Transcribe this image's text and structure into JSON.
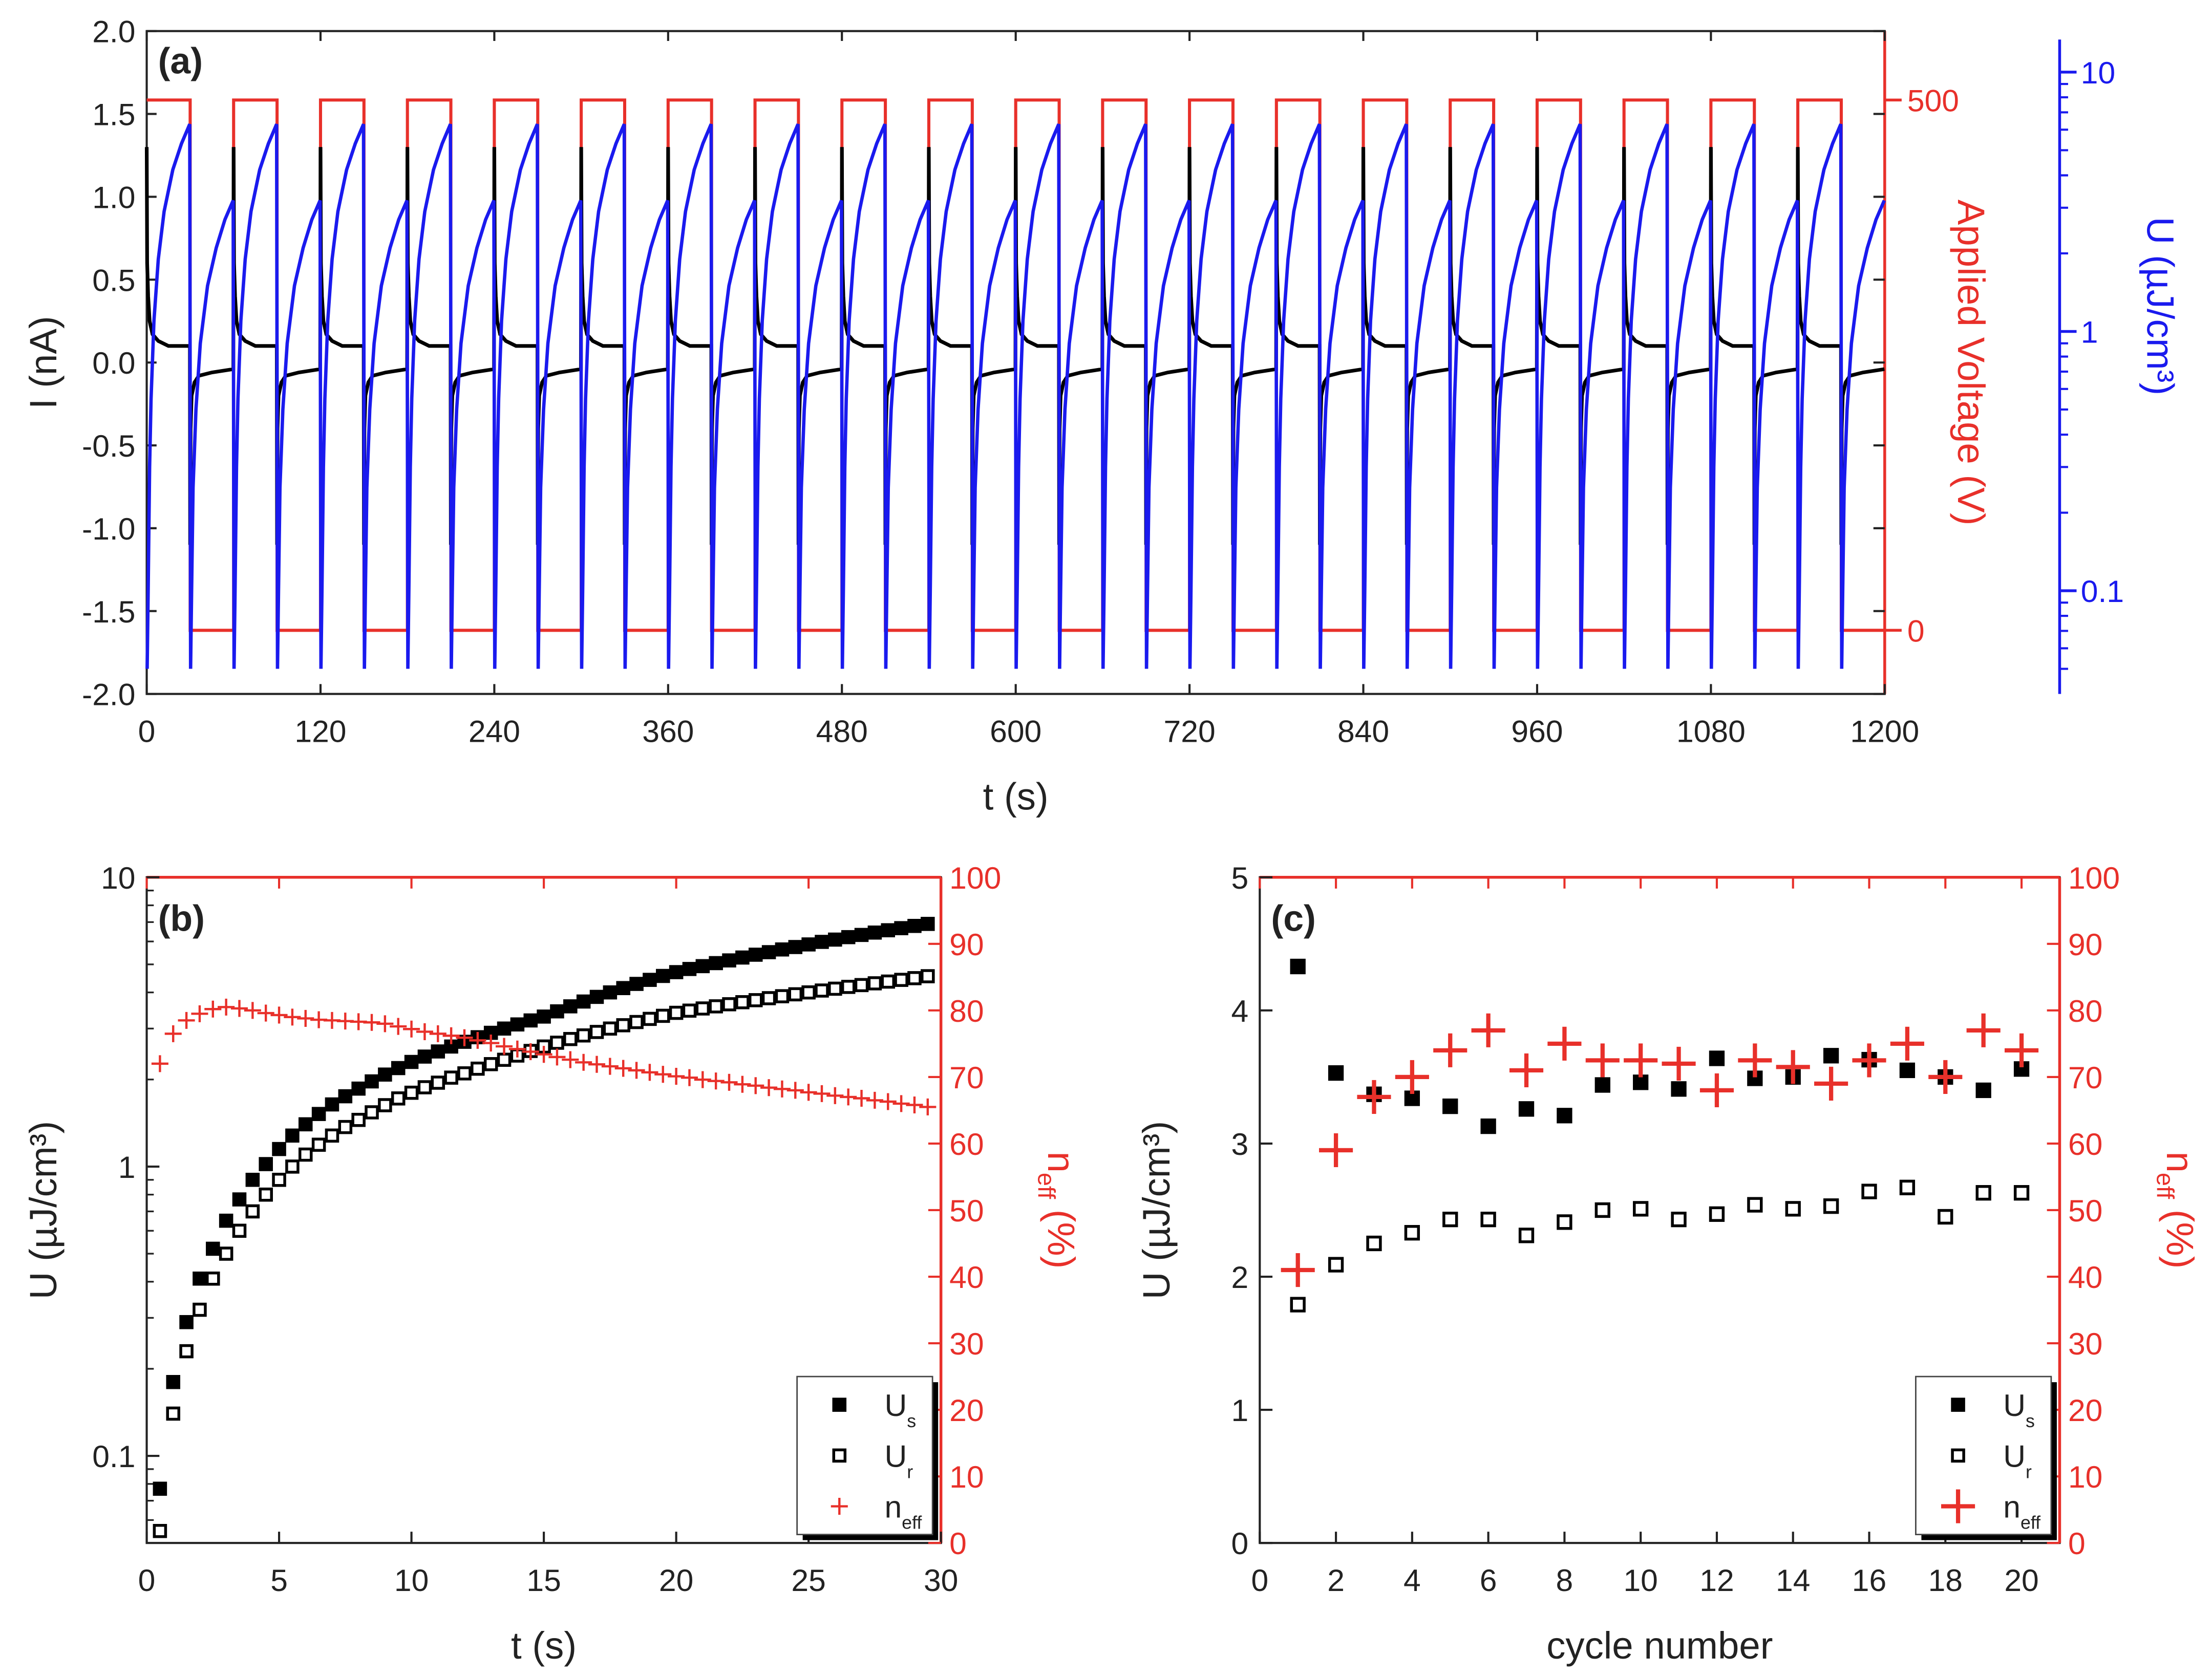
{
  "colors": {
    "current": "#000000",
    "voltage": "#e8302a",
    "energy": "#1a1aee",
    "neff": "#e8302a"
  },
  "chart_data": [
    {
      "panel": "(a)",
      "type": "line",
      "xlabel": "t (s)",
      "ylabel": "I (nA)",
      "y2label": "Applied Voltage (V)",
      "y3label": "U (µJ/cm³)",
      "xlim": [
        0,
        1200
      ],
      "ylim": [
        -2.0,
        2.0
      ],
      "y2lim": [
        -60,
        565
      ],
      "y3lim": [
        0.04,
        14.4
      ],
      "y3scale": "log",
      "xticks": [
        "0",
        "120",
        "240",
        "360",
        "480",
        "600",
        "720",
        "840",
        "960",
        "1080",
        "1200"
      ],
      "yticks": [
        "-2.0",
        "-1.5",
        "-1.0",
        "-0.5",
        "0.0",
        "0.5",
        "1.0",
        "1.5",
        "2.0"
      ],
      "y2ticks": [
        "0",
        "500"
      ],
      "y3ticks": [
        "0.1",
        "1",
        "10"
      ],
      "voltage": {
        "high": 500,
        "low": 0,
        "period_s": 60,
        "high_duration_s": 30,
        "cycles": 20
      },
      "current_one_period": {
        "t": [
          0,
          0.3,
          1,
          2,
          4,
          8,
          15,
          29.8,
          30,
          30.3,
          31,
          33,
          36,
          45,
          59.8
        ],
        "I": [
          1.3,
          0.6,
          0.4,
          0.25,
          0.17,
          0.13,
          0.1,
          0.1,
          -1.1,
          -0.4,
          -0.2,
          -0.12,
          -0.08,
          -0.06,
          -0.04
        ]
      },
      "energy_one_period": {
        "t": [
          0.3,
          1,
          2,
          3,
          5,
          8,
          12,
          18,
          24,
          29.7,
          30.3,
          31,
          32,
          34,
          37,
          42,
          48,
          54,
          59.7
        ],
        "U": [
          0.05,
          0.1,
          0.3,
          0.55,
          1.1,
          1.9,
          2.9,
          4.2,
          5.3,
          6.3,
          0.05,
          0.1,
          0.25,
          0.5,
          0.9,
          1.5,
          2.1,
          2.7,
          3.2
        ]
      }
    },
    {
      "panel": "(b)",
      "type": "scatter",
      "xlabel": "t (s)",
      "ylabel": "U (µJ/cm³)",
      "y2label": "n",
      "y2label_sub": "eff",
      "y2label_unit": " (%)",
      "xlim": [
        0,
        30
      ],
      "ylim": [
        0.05,
        10
      ],
      "yscale": "log",
      "y2lim": [
        0,
        100
      ],
      "xticks": [
        "0",
        "5",
        "10",
        "15",
        "20",
        "25",
        "30"
      ],
      "yticks": [
        "0.1",
        "1",
        "10"
      ],
      "y2ticks": [
        "0",
        "10",
        "20",
        "30",
        "40",
        "50",
        "60",
        "70",
        "80",
        "90",
        "100"
      ],
      "legend": {
        "position": "bottom-right",
        "entries": [
          {
            "main": "U",
            "sub": "s"
          },
          {
            "main": "U",
            "sub": "r"
          },
          {
            "main": "n",
            "sub": "eff"
          }
        ]
      },
      "x": [
        0.5,
        1,
        1.5,
        2,
        2.5,
        3,
        3.5,
        4,
        4.5,
        5,
        5.5,
        6,
        6.5,
        7,
        7.5,
        8,
        8.5,
        9,
        9.5,
        10,
        10.5,
        11,
        11.5,
        12,
        12.5,
        13,
        13.5,
        14,
        14.5,
        15,
        15.5,
        16,
        16.5,
        17,
        17.5,
        18,
        18.5,
        19,
        19.5,
        20,
        20.5,
        21,
        21.5,
        22,
        22.5,
        23,
        23.5,
        24,
        24.5,
        25,
        25.5,
        26,
        26.5,
        27,
        27.5,
        28,
        28.5,
        29,
        29.5
      ],
      "series": [
        {
          "name": "Us",
          "marker": "filled-square",
          "values": [
            0.077,
            0.18,
            0.29,
            0.41,
            0.52,
            0.65,
            0.77,
            0.9,
            1.02,
            1.15,
            1.28,
            1.4,
            1.52,
            1.64,
            1.75,
            1.86,
            1.97,
            2.08,
            2.19,
            2.3,
            2.4,
            2.5,
            2.6,
            2.7,
            2.8,
            2.9,
            3.0,
            3.1,
            3.2,
            3.3,
            3.44,
            3.58,
            3.72,
            3.86,
            4.0,
            4.14,
            4.28,
            4.42,
            4.56,
            4.7,
            4.82,
            4.93,
            5.05,
            5.16,
            5.28,
            5.4,
            5.51,
            5.63,
            5.74,
            5.86,
            5.98,
            6.09,
            6.21,
            6.32,
            6.44,
            6.56,
            6.67,
            6.79,
            6.9
          ]
        },
        {
          "name": "Ur",
          "marker": "open-square",
          "values": [
            0.055,
            0.14,
            0.23,
            0.32,
            0.41,
            0.5,
            0.6,
            0.7,
            0.8,
            0.9,
            1.0,
            1.1,
            1.19,
            1.28,
            1.37,
            1.45,
            1.54,
            1.63,
            1.72,
            1.8,
            1.88,
            1.95,
            2.03,
            2.1,
            2.18,
            2.26,
            2.34,
            2.42,
            2.51,
            2.6,
            2.68,
            2.76,
            2.84,
            2.92,
            3.0,
            3.08,
            3.16,
            3.24,
            3.32,
            3.4,
            3.46,
            3.52,
            3.58,
            3.64,
            3.7,
            3.76,
            3.82,
            3.88,
            3.94,
            4.0,
            4.06,
            4.12,
            4.18,
            4.24,
            4.3,
            4.36,
            4.42,
            4.48,
            4.55
          ]
        },
        {
          "name": "neff",
          "axis": "right",
          "marker": "plus",
          "values": [
            72,
            76.5,
            78.5,
            79.5,
            80.2,
            80.5,
            80.3,
            80,
            79.6,
            79.3,
            79,
            78.8,
            78.6,
            78.5,
            78.4,
            78.3,
            78.2,
            78,
            77.6,
            77.2,
            76.8,
            76.5,
            76.2,
            75.9,
            75.5,
            75.1,
            74.6,
            74.2,
            73.8,
            73.4,
            73,
            72.6,
            72.2,
            71.9,
            71.6,
            71.3,
            71,
            70.7,
            70.4,
            70.1,
            69.9,
            69.6,
            69.4,
            69.2,
            68.9,
            68.7,
            68.4,
            68.2,
            68.0,
            67.7,
            67.5,
            67.2,
            67.0,
            66.8,
            66.5,
            66.3,
            66.0,
            65.8,
            65.5
          ]
        }
      ]
    },
    {
      "panel": "(c)",
      "type": "scatter",
      "xlabel": "cycle number",
      "ylabel": "U (µJ/cm³)",
      "y2label": "n",
      "y2label_sub": "eff",
      "y2label_unit": " (%)",
      "xlim": [
        0,
        21
      ],
      "ylim": [
        0,
        5
      ],
      "y2lim": [
        0,
        100
      ],
      "xticks": [
        "0",
        "2",
        "4",
        "6",
        "8",
        "10",
        "12",
        "14",
        "16",
        "18",
        "20"
      ],
      "yticks": [
        "0",
        "1",
        "2",
        "3",
        "4",
        "5"
      ],
      "y2ticks": [
        "0",
        "10",
        "20",
        "30",
        "40",
        "50",
        "60",
        "70",
        "80",
        "90",
        "100"
      ],
      "legend": {
        "position": "bottom-right",
        "entries": [
          {
            "main": "U",
            "sub": "s"
          },
          {
            "main": "U",
            "sub": "r"
          },
          {
            "main": "n",
            "sub": "eff"
          }
        ]
      },
      "x": [
        1,
        2,
        3,
        4,
        5,
        6,
        7,
        8,
        9,
        10,
        11,
        12,
        13,
        14,
        15,
        16,
        17,
        18,
        19,
        20
      ],
      "series": [
        {
          "name": "Us",
          "marker": "filled-square",
          "values": [
            4.33,
            3.53,
            3.37,
            3.34,
            3.28,
            3.13,
            3.26,
            3.21,
            3.44,
            3.46,
            3.41,
            3.64,
            3.49,
            3.5,
            3.66,
            3.63,
            3.55,
            3.5,
            3.4,
            3.56
          ]
        },
        {
          "name": "Ur",
          "marker": "open-square",
          "values": [
            1.79,
            2.09,
            2.25,
            2.33,
            2.43,
            2.43,
            2.31,
            2.41,
            2.5,
            2.51,
            2.43,
            2.47,
            2.54,
            2.51,
            2.53,
            2.64,
            2.67,
            2.45,
            2.63,
            2.63
          ]
        },
        {
          "name": "neff",
          "axis": "right",
          "marker": "plus",
          "values": [
            41,
            59,
            67,
            70,
            74,
            77,
            71,
            75,
            72.5,
            72.5,
            72,
            68,
            72.5,
            71.5,
            69,
            72.5,
            75,
            70,
            77,
            74
          ]
        }
      ]
    }
  ]
}
